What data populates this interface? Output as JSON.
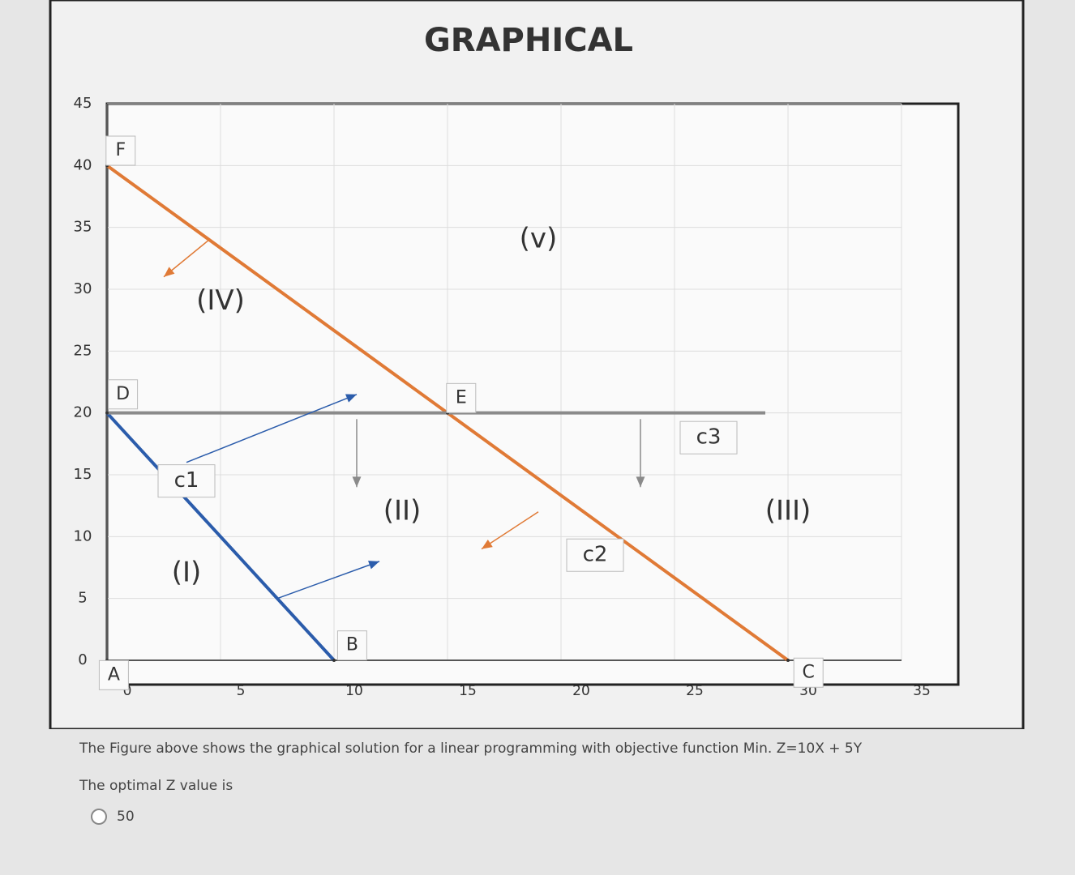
{
  "chart_data": {
    "type": "line",
    "title": "GRAPHICAL",
    "xlim": [
      0,
      35
    ],
    "ylim": [
      0,
      45
    ],
    "xticks": [
      0,
      5,
      10,
      15,
      20,
      25,
      30,
      35
    ],
    "yticks": [
      0,
      5,
      10,
      15,
      20,
      25,
      30,
      35,
      40,
      45
    ],
    "grid": true,
    "series": [
      {
        "name": "c1",
        "color": "#2b5cab",
        "x": [
          0,
          10
        ],
        "values": [
          20,
          0
        ]
      },
      {
        "name": "c2",
        "color": "#e07a36",
        "x": [
          0,
          30
        ],
        "values": [
          40,
          0
        ]
      },
      {
        "name": "c3",
        "color": "#8a8a8a",
        "x": [
          0,
          29
        ],
        "values": [
          20,
          20
        ]
      }
    ],
    "points": [
      {
        "label": "A",
        "x": 0,
        "y": 0
      },
      {
        "label": "B",
        "x": 10,
        "y": 0
      },
      {
        "label": "C",
        "x": 30,
        "y": 0
      },
      {
        "label": "D",
        "x": 0,
        "y": 20
      },
      {
        "label": "E",
        "x": 15,
        "y": 20
      },
      {
        "label": "F",
        "x": 0,
        "y": 40
      }
    ],
    "regions": [
      "(I)",
      "(II)",
      "(III)",
      "(IV)",
      "(v)"
    ]
  },
  "question": {
    "text": "The Figure above shows the graphical solution for a linear programming with objective function Min. Z=10X + 5Y",
    "prompt": "The optimal Z value is",
    "options": [
      "50"
    ]
  }
}
